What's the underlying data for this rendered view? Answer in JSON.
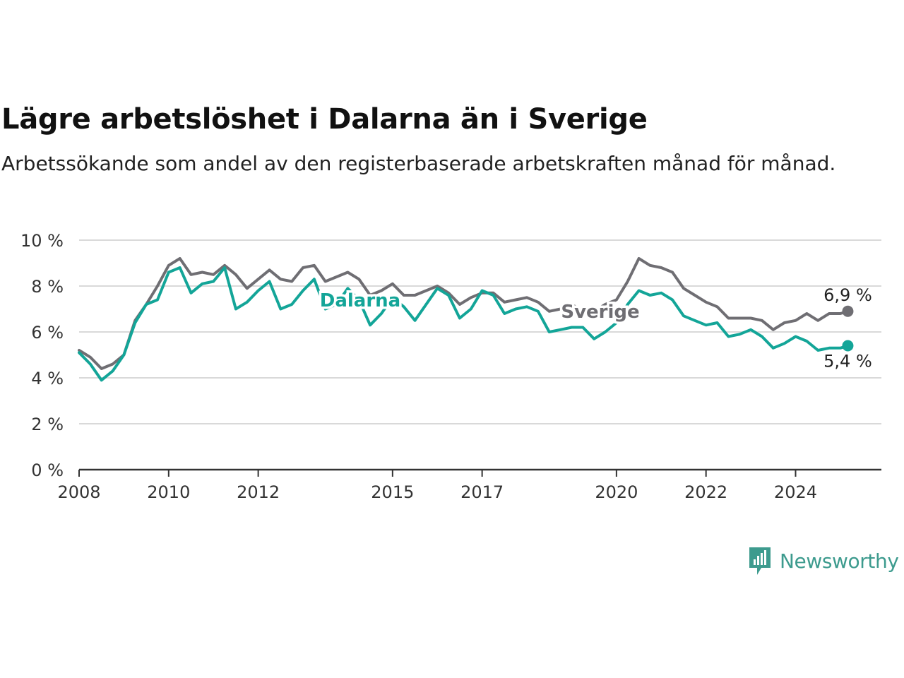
{
  "title": "Lägre arbetslöshet i Dalarna än i Sverige",
  "subtitle": "Arbetssökande som andel av den registerbaserade arbetskraften månad för månad.",
  "brand": "Newsworthy",
  "colors": {
    "sverige": "#6f6e73",
    "dalarna": "#13a598",
    "grid": "#d9d9d9",
    "axis": "#333333",
    "brand": "#3d9b8e"
  },
  "chart_data": {
    "type": "line",
    "ylim": [
      0,
      10
    ],
    "yticks": [
      0,
      2,
      4,
      6,
      8,
      10
    ],
    "ytick_labels": [
      "0 %",
      "2 %",
      "4 %",
      "6 %",
      "8 %",
      "10 %"
    ],
    "xlim": [
      "2008-01",
      "2025-12"
    ],
    "xticks": [
      "2008-01",
      "2010-01",
      "2012-01",
      "2015-01",
      "2017-01",
      "2020-01",
      "2022-01",
      "2024-01"
    ],
    "xtick_labels": [
      "2008",
      "2010",
      "2012",
      "2015",
      "2017",
      "2020",
      "2022",
      "2024"
    ],
    "grid": true,
    "series": [
      {
        "name": "Sverige",
        "end_label": "6,9 %",
        "points": [
          [
            "2008-01",
            5.2
          ],
          [
            "2008-04",
            4.9
          ],
          [
            "2008-07",
            4.4
          ],
          [
            "2008-10",
            4.6
          ],
          [
            "2009-01",
            5.0
          ],
          [
            "2009-04",
            6.5
          ],
          [
            "2009-07",
            7.2
          ],
          [
            "2009-10",
            8.0
          ],
          [
            "2010-01",
            8.9
          ],
          [
            "2010-04",
            9.2
          ],
          [
            "2010-07",
            8.5
          ],
          [
            "2010-10",
            8.6
          ],
          [
            "2011-01",
            8.5
          ],
          [
            "2011-04",
            8.9
          ],
          [
            "2011-07",
            8.5
          ],
          [
            "2011-10",
            7.9
          ],
          [
            "2012-01",
            8.3
          ],
          [
            "2012-04",
            8.7
          ],
          [
            "2012-07",
            8.3
          ],
          [
            "2012-10",
            8.2
          ],
          [
            "2013-01",
            8.8
          ],
          [
            "2013-04",
            8.9
          ],
          [
            "2013-07",
            8.2
          ],
          [
            "2013-10",
            8.4
          ],
          [
            "2014-01",
            8.6
          ],
          [
            "2014-04",
            8.3
          ],
          [
            "2014-07",
            7.6
          ],
          [
            "2014-10",
            7.8
          ],
          [
            "2015-01",
            8.1
          ],
          [
            "2015-04",
            7.6
          ],
          [
            "2015-07",
            7.6
          ],
          [
            "2015-10",
            7.8
          ],
          [
            "2016-01",
            8.0
          ],
          [
            "2016-04",
            7.7
          ],
          [
            "2016-07",
            7.2
          ],
          [
            "2016-10",
            7.5
          ],
          [
            "2017-01",
            7.7
          ],
          [
            "2017-04",
            7.7
          ],
          [
            "2017-07",
            7.3
          ],
          [
            "2017-10",
            7.4
          ],
          [
            "2018-01",
            7.5
          ],
          [
            "2018-04",
            7.3
          ],
          [
            "2018-07",
            6.9
          ],
          [
            "2018-10",
            7.0
          ],
          [
            "2019-01",
            7.2
          ],
          [
            "2019-04",
            6.9
          ],
          [
            "2019-07",
            6.9
          ],
          [
            "2019-10",
            7.2
          ],
          [
            "2020-01",
            7.4
          ],
          [
            "2020-04",
            8.2
          ],
          [
            "2020-07",
            9.2
          ],
          [
            "2020-10",
            8.9
          ],
          [
            "2021-01",
            8.8
          ],
          [
            "2021-04",
            8.6
          ],
          [
            "2021-07",
            7.9
          ],
          [
            "2021-10",
            7.6
          ],
          [
            "2022-01",
            7.3
          ],
          [
            "2022-04",
            7.1
          ],
          [
            "2022-07",
            6.6
          ],
          [
            "2022-10",
            6.6
          ],
          [
            "2023-01",
            6.6
          ],
          [
            "2023-04",
            6.5
          ],
          [
            "2023-07",
            6.1
          ],
          [
            "2023-10",
            6.4
          ],
          [
            "2024-01",
            6.5
          ],
          [
            "2024-04",
            6.8
          ],
          [
            "2024-07",
            6.5
          ],
          [
            "2024-10",
            6.8
          ],
          [
            "2025-01",
            6.8
          ],
          [
            "2025-03",
            6.9
          ]
        ]
      },
      {
        "name": "Dalarna",
        "end_label": "5,4 %",
        "points": [
          [
            "2008-01",
            5.1
          ],
          [
            "2008-04",
            4.6
          ],
          [
            "2008-07",
            3.9
          ],
          [
            "2008-10",
            4.3
          ],
          [
            "2009-01",
            5.0
          ],
          [
            "2009-04",
            6.4
          ],
          [
            "2009-07",
            7.2
          ],
          [
            "2009-10",
            7.4
          ],
          [
            "2010-01",
            8.6
          ],
          [
            "2010-04",
            8.8
          ],
          [
            "2010-07",
            7.7
          ],
          [
            "2010-10",
            8.1
          ],
          [
            "2011-01",
            8.2
          ],
          [
            "2011-04",
            8.8
          ],
          [
            "2011-07",
            7.0
          ],
          [
            "2011-10",
            7.3
          ],
          [
            "2012-01",
            7.8
          ],
          [
            "2012-04",
            8.2
          ],
          [
            "2012-07",
            7.0
          ],
          [
            "2012-10",
            7.2
          ],
          [
            "2013-01",
            7.8
          ],
          [
            "2013-04",
            8.3
          ],
          [
            "2013-07",
            7.0
          ],
          [
            "2013-10",
            7.2
          ],
          [
            "2014-01",
            7.9
          ],
          [
            "2014-04",
            7.4
          ],
          [
            "2014-07",
            6.3
          ],
          [
            "2014-10",
            6.8
          ],
          [
            "2015-01",
            7.5
          ],
          [
            "2015-04",
            7.1
          ],
          [
            "2015-07",
            6.5
          ],
          [
            "2015-10",
            7.2
          ],
          [
            "2016-01",
            7.9
          ],
          [
            "2016-04",
            7.6
          ],
          [
            "2016-07",
            6.6
          ],
          [
            "2016-10",
            7.0
          ],
          [
            "2017-01",
            7.8
          ],
          [
            "2017-04",
            7.6
          ],
          [
            "2017-07",
            6.8
          ],
          [
            "2017-10",
            7.0
          ],
          [
            "2018-01",
            7.1
          ],
          [
            "2018-04",
            6.9
          ],
          [
            "2018-07",
            6.0
          ],
          [
            "2018-10",
            6.1
          ],
          [
            "2019-01",
            6.2
          ],
          [
            "2019-04",
            6.2
          ],
          [
            "2019-07",
            5.7
          ],
          [
            "2019-10",
            6.0
          ],
          [
            "2020-01",
            6.4
          ],
          [
            "2020-04",
            7.2
          ],
          [
            "2020-07",
            7.8
          ],
          [
            "2020-10",
            7.6
          ],
          [
            "2021-01",
            7.7
          ],
          [
            "2021-04",
            7.4
          ],
          [
            "2021-07",
            6.7
          ],
          [
            "2021-10",
            6.5
          ],
          [
            "2022-01",
            6.3
          ],
          [
            "2022-04",
            6.4
          ],
          [
            "2022-07",
            5.8
          ],
          [
            "2022-10",
            5.9
          ],
          [
            "2023-01",
            6.1
          ],
          [
            "2023-04",
            5.8
          ],
          [
            "2023-07",
            5.3
          ],
          [
            "2023-10",
            5.5
          ],
          [
            "2024-01",
            5.8
          ],
          [
            "2024-04",
            5.6
          ],
          [
            "2024-07",
            5.2
          ],
          [
            "2024-10",
            5.3
          ],
          [
            "2025-01",
            5.3
          ],
          [
            "2025-03",
            5.4
          ]
        ]
      }
    ]
  }
}
